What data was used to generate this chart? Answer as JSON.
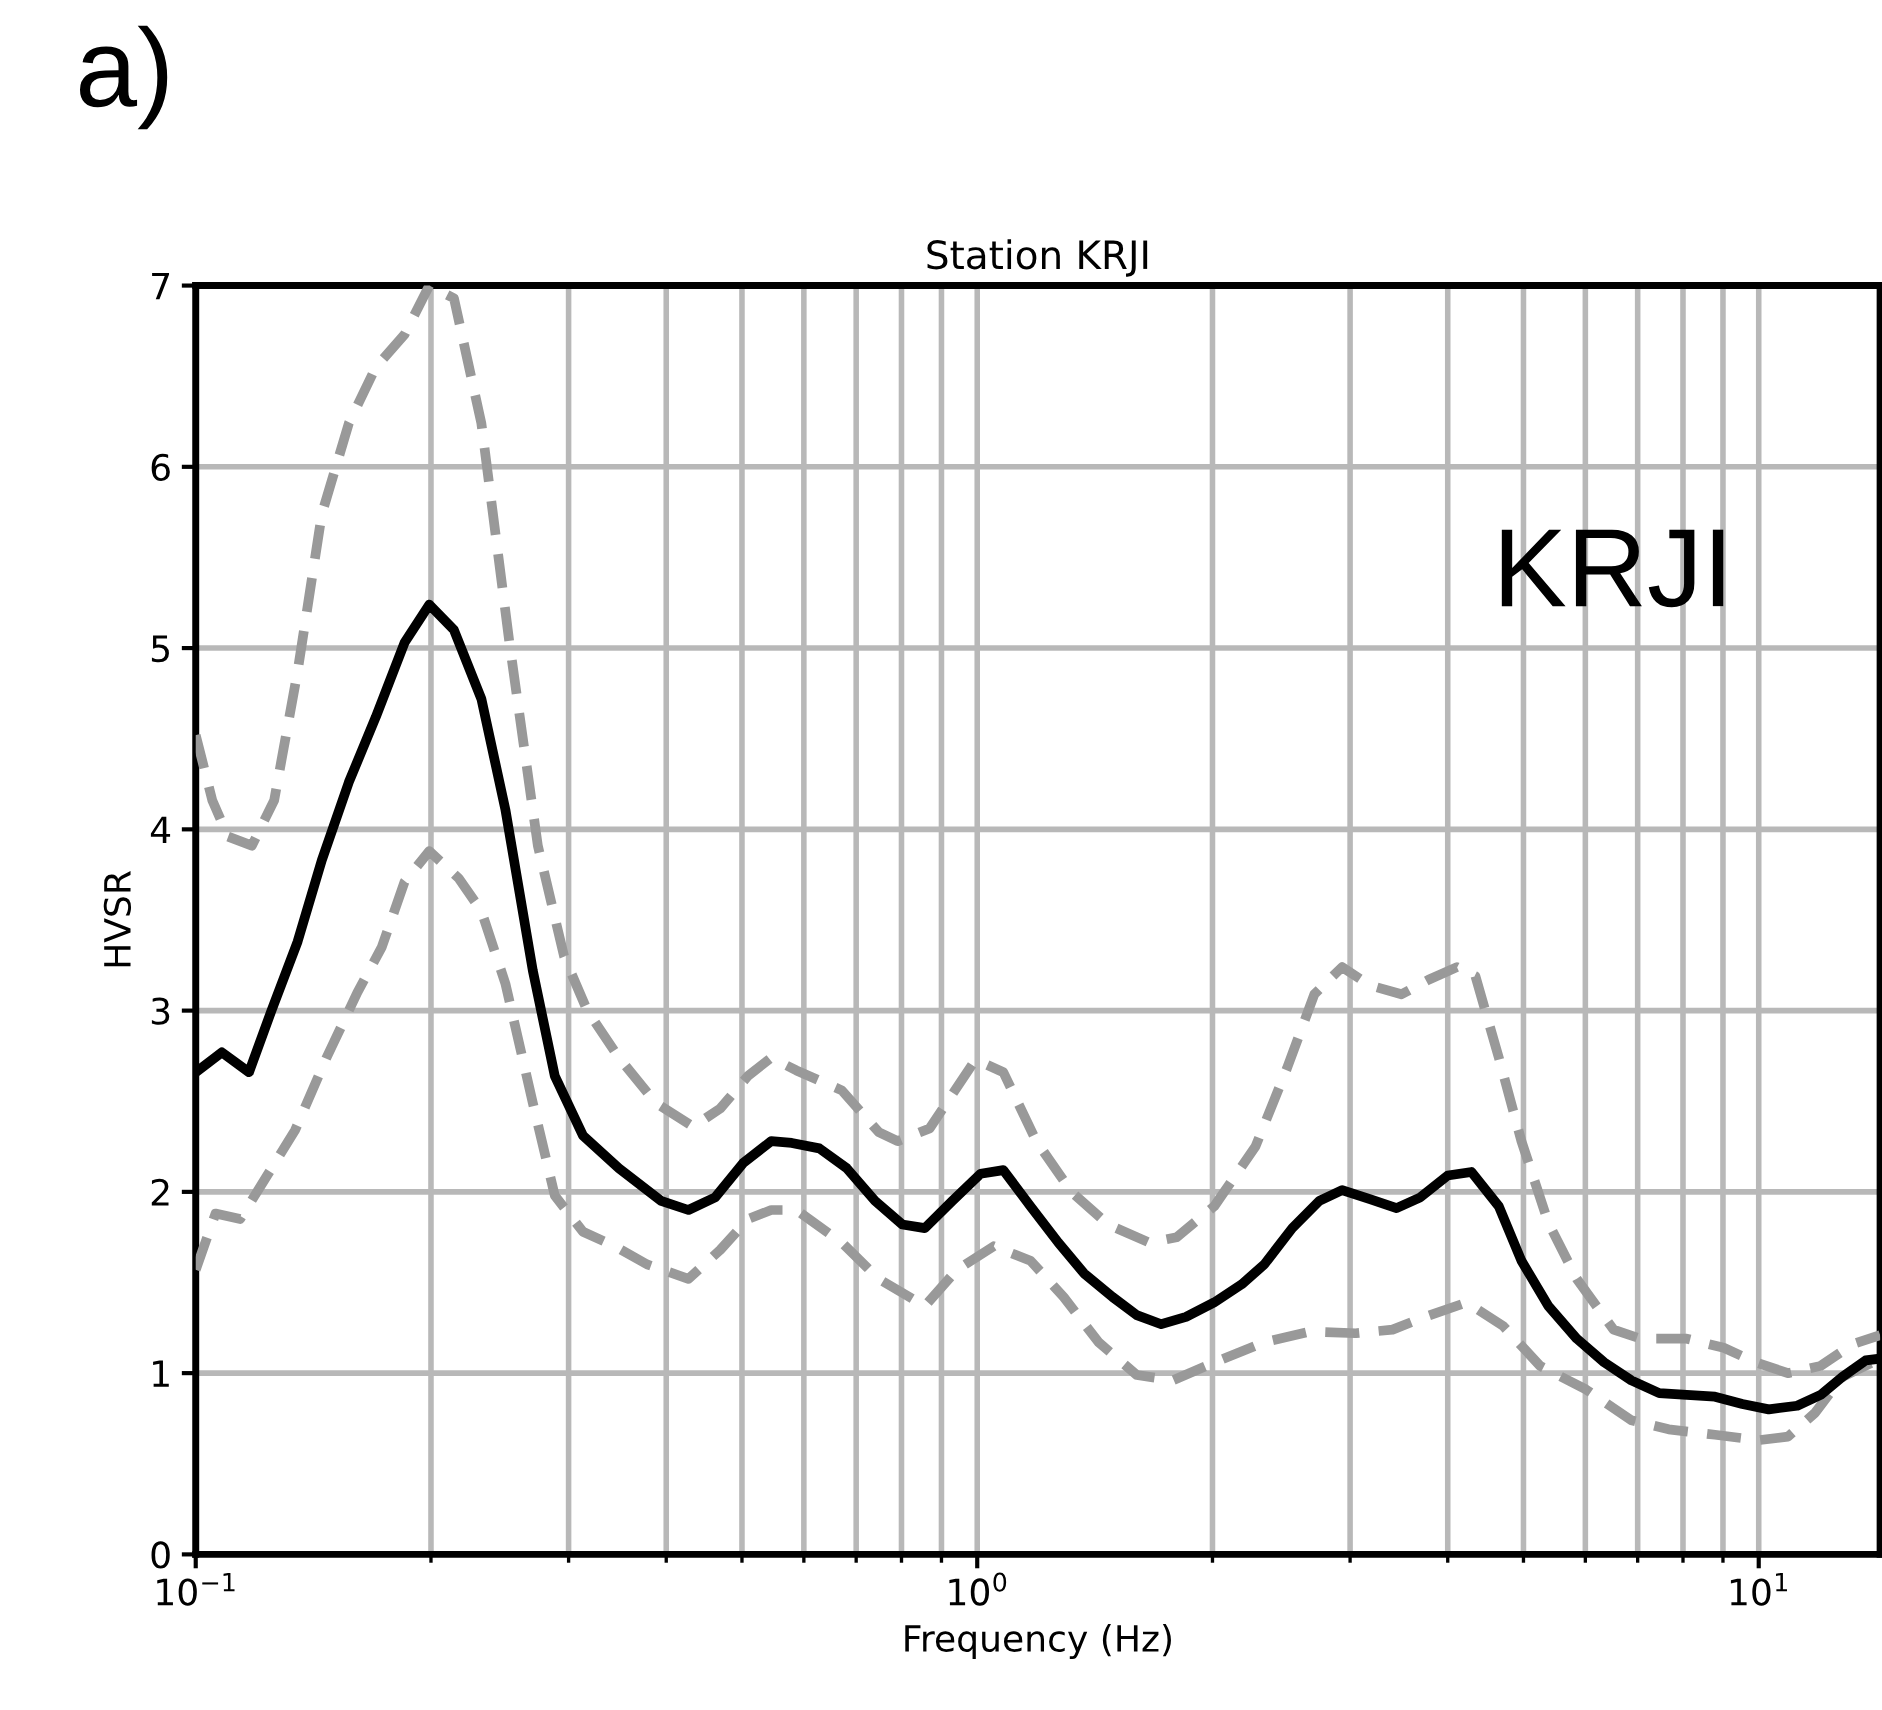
{
  "chart_data": {
    "type": "line",
    "title": "Station KRJI",
    "xlabel": "Frequency (Hz)",
    "ylabel": "HVSR",
    "log": "x",
    "xlim": [
      0.1,
      14.3
    ],
    "ylim": [
      0,
      7
    ],
    "yticks": [
      0,
      1,
      2,
      3,
      4,
      5,
      6,
      7
    ],
    "xticks": [
      {
        "value": 0.1,
        "label": "10$^{−1}$"
      },
      {
        "value": 1,
        "label": "10$^{0}$"
      },
      {
        "value": 10,
        "label": "10$^{1}$"
      }
    ],
    "grid": true,
    "marker": "none",
    "annotations": [
      "a)",
      "KRJI"
    ],
    "series": [
      {
        "color": "#999999",
        "line_style": "dashed",
        "x": [
          0.1,
          0.105,
          0.11,
          0.118,
          0.126,
          0.135,
          0.145,
          0.157,
          0.17,
          0.185,
          0.199,
          0.214,
          0.232,
          0.252,
          0.274,
          0.296,
          0.317,
          0.348,
          0.388,
          0.433,
          0.469,
          0.509,
          0.545,
          0.587,
          0.671,
          0.748,
          0.791,
          0.869,
          0.995,
          1.08,
          1.19,
          1.32,
          1.47,
          1.66,
          1.8,
          2.01,
          2.27,
          2.49,
          2.7,
          2.93,
          3.18,
          3.49,
          3.78,
          4.11,
          4.34,
          4.65,
          4.97,
          5.38,
          5.85,
          6.52,
          7.06,
          8.09,
          9.02,
          9.91,
          10.9,
          12.0,
          13.2,
          14.3
        ],
        "values": [
          4.52,
          4.16,
          3.96,
          3.91,
          4.16,
          4.87,
          5.74,
          6.24,
          6.55,
          6.73,
          7.0,
          6.93,
          6.24,
          5.03,
          3.91,
          3.3,
          3.0,
          2.74,
          2.49,
          2.36,
          2.46,
          2.64,
          2.74,
          2.67,
          2.56,
          2.33,
          2.28,
          2.35,
          2.73,
          2.66,
          2.28,
          2.0,
          1.82,
          1.72,
          1.75,
          1.92,
          2.25,
          2.68,
          3.09,
          3.24,
          3.14,
          3.09,
          3.17,
          3.24,
          3.19,
          2.74,
          2.28,
          1.83,
          1.52,
          1.24,
          1.19,
          1.19,
          1.14,
          1.06,
          1.0,
          1.04,
          1.16,
          1.21
        ]
      },
      {
        "color": "#999999",
        "line_style": "dashed",
        "x": [
          0.1,
          0.106,
          0.114,
          0.123,
          0.134,
          0.147,
          0.161,
          0.173,
          0.185,
          0.199,
          0.217,
          0.232,
          0.249,
          0.27,
          0.288,
          0.313,
          0.344,
          0.378,
          0.427,
          0.469,
          0.509,
          0.545,
          0.587,
          0.671,
          0.748,
          0.857,
          0.942,
          1.05,
          1.17,
          1.29,
          1.43,
          1.6,
          1.78,
          2.04,
          2.33,
          2.67,
          3.05,
          3.4,
          3.74,
          4.23,
          4.71,
          5.25,
          6.01,
          6.87,
          7.67,
          8.79,
          10.0,
          10.9,
          11.8,
          12.8,
          14.3
        ],
        "values": [
          1.57,
          1.88,
          1.85,
          2.08,
          2.34,
          2.74,
          3.1,
          3.35,
          3.71,
          3.88,
          3.73,
          3.55,
          3.15,
          2.49,
          1.98,
          1.78,
          1.7,
          1.6,
          1.52,
          1.68,
          1.85,
          1.9,
          1.9,
          1.72,
          1.52,
          1.37,
          1.57,
          1.7,
          1.62,
          1.42,
          1.17,
          0.99,
          0.96,
          1.07,
          1.17,
          1.23,
          1.22,
          1.24,
          1.31,
          1.39,
          1.26,
          1.04,
          0.91,
          0.74,
          0.69,
          0.66,
          0.63,
          0.65,
          0.78,
          0.98,
          1.08
        ]
      },
      {
        "color": "#000000",
        "line_style": "solid",
        "x": [
          0.1,
          0.108,
          0.117,
          0.125,
          0.135,
          0.145,
          0.157,
          0.17,
          0.185,
          0.199,
          0.214,
          0.232,
          0.249,
          0.27,
          0.288,
          0.313,
          0.348,
          0.394,
          0.427,
          0.462,
          0.502,
          0.545,
          0.579,
          0.628,
          0.681,
          0.74,
          0.802,
          0.857,
          0.929,
          1.01,
          1.08,
          1.17,
          1.27,
          1.37,
          1.49,
          1.6,
          1.72,
          1.85,
          2.01,
          2.18,
          2.33,
          2.53,
          2.74,
          2.93,
          3.18,
          3.44,
          3.69,
          4.0,
          4.29,
          4.65,
          4.97,
          5.38,
          5.85,
          6.34,
          6.87,
          7.46,
          8.09,
          8.79,
          9.53,
          10.3,
          11.2,
          12.0,
          12.8,
          13.7,
          14.3
        ],
        "values": [
          2.66,
          2.77,
          2.66,
          3.0,
          3.38,
          3.83,
          4.26,
          4.62,
          5.03,
          5.24,
          5.1,
          4.72,
          4.11,
          3.22,
          2.64,
          2.31,
          2.13,
          1.95,
          1.9,
          1.97,
          2.16,
          2.28,
          2.27,
          2.24,
          2.13,
          1.95,
          1.82,
          1.8,
          1.95,
          2.1,
          2.12,
          1.92,
          1.72,
          1.55,
          1.42,
          1.32,
          1.27,
          1.31,
          1.39,
          1.49,
          1.6,
          1.8,
          1.95,
          2.01,
          1.96,
          1.91,
          1.97,
          2.09,
          2.11,
          1.92,
          1.62,
          1.37,
          1.19,
          1.06,
          0.96,
          0.89,
          0.88,
          0.87,
          0.83,
          0.8,
          0.82,
          0.88,
          0.98,
          1.07,
          1.08
        ]
      }
    ]
  }
}
